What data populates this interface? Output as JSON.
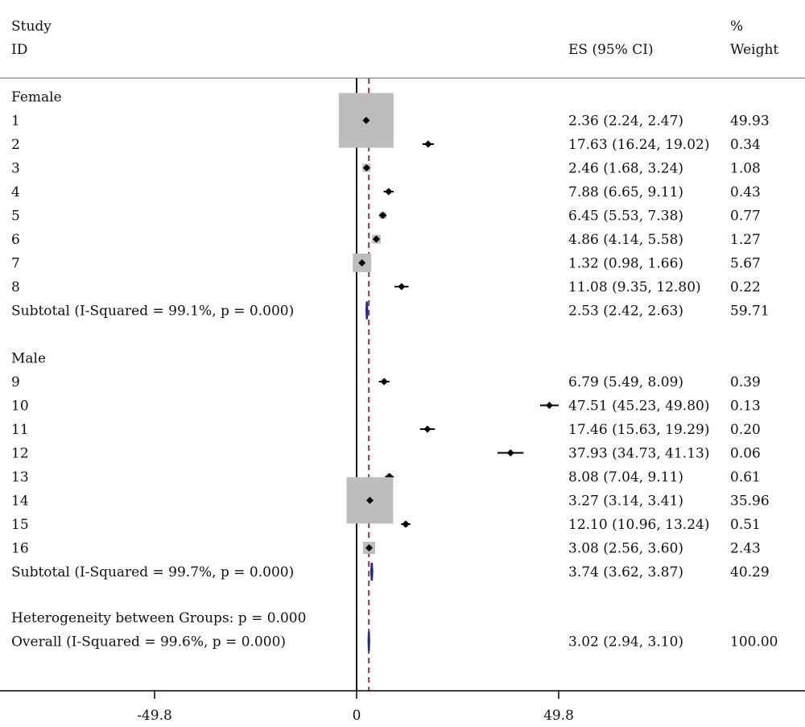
{
  "chart_data": {
    "type": "forest",
    "header": {
      "study_label": "Study",
      "id_label": "ID",
      "es_label": "ES (95% CI)",
      "weight_label_top": "%",
      "weight_label_bottom": "Weight"
    },
    "x_ticks": [
      -49.8,
      0,
      49.8
    ],
    "x_tick_labels": [
      "-49.8",
      "0",
      "49.8"
    ],
    "xlim": [
      -87.5,
      111.5
    ],
    "reference_line": 3.02,
    "groups": [
      {
        "name": "Female",
        "studies": [
          {
            "id": "1",
            "es": 2.36,
            "lo": 2.24,
            "hi": 2.47,
            "ci_text": "2.36 (2.24, 2.47)",
            "weight": 49.93,
            "weight_text": "49.93"
          },
          {
            "id": "2",
            "es": 17.63,
            "lo": 16.24,
            "hi": 19.02,
            "ci_text": "17.63 (16.24, 19.02)",
            "weight": 0.34,
            "weight_text": "0.34"
          },
          {
            "id": "3",
            "es": 2.46,
            "lo": 1.68,
            "hi": 3.24,
            "ci_text": "2.46 (1.68, 3.24)",
            "weight": 1.08,
            "weight_text": "1.08"
          },
          {
            "id": "4",
            "es": 7.88,
            "lo": 6.65,
            "hi": 9.11,
            "ci_text": "7.88 (6.65, 9.11)",
            "weight": 0.43,
            "weight_text": "0.43"
          },
          {
            "id": "5",
            "es": 6.45,
            "lo": 5.53,
            "hi": 7.38,
            "ci_text": "6.45 (5.53, 7.38)",
            "weight": 0.77,
            "weight_text": "0.77"
          },
          {
            "id": "6",
            "es": 4.86,
            "lo": 4.14,
            "hi": 5.58,
            "ci_text": "4.86 (4.14, 5.58)",
            "weight": 1.27,
            "weight_text": "1.27"
          },
          {
            "id": "7",
            "es": 1.32,
            "lo": 0.98,
            "hi": 1.66,
            "ci_text": "1.32 (0.98, 1.66)",
            "weight": 5.67,
            "weight_text": "5.67"
          },
          {
            "id": "8",
            "es": 11.08,
            "lo": 9.35,
            "hi": 12.8,
            "ci_text": "11.08 (9.35, 12.80)",
            "weight": 0.22,
            "weight_text": "0.22"
          }
        ],
        "subtotal": {
          "label": "Subtotal  (I-Squared = 99.1%, p = 0.000)",
          "es": 2.53,
          "lo": 2.42,
          "hi": 2.63,
          "ci_text": "2.53 (2.42, 2.63)",
          "weight_text": "59.71"
        }
      },
      {
        "name": "Male",
        "studies": [
          {
            "id": "9",
            "es": 6.79,
            "lo": 5.49,
            "hi": 8.09,
            "ci_text": "6.79 (5.49, 8.09)",
            "weight": 0.39,
            "weight_text": "0.39"
          },
          {
            "id": "10",
            "es": 47.51,
            "lo": 45.23,
            "hi": 49.8,
            "ci_text": "47.51 (45.23, 49.80)",
            "weight": 0.13,
            "weight_text": "0.13"
          },
          {
            "id": "11",
            "es": 17.46,
            "lo": 15.63,
            "hi": 19.29,
            "ci_text": "17.46 (15.63, 19.29)",
            "weight": 0.2,
            "weight_text": "0.20"
          },
          {
            "id": "12",
            "es": 37.93,
            "lo": 34.73,
            "hi": 41.13,
            "ci_text": "37.93 (34.73, 41.13)",
            "weight": 0.06,
            "weight_text": "0.06"
          },
          {
            "id": "13",
            "es": 8.08,
            "lo": 7.04,
            "hi": 9.11,
            "ci_text": "8.08 (7.04, 9.11)",
            "weight": 0.61,
            "weight_text": "0.61"
          },
          {
            "id": "14",
            "es": 3.27,
            "lo": 3.14,
            "hi": 3.41,
            "ci_text": "3.27 (3.14, 3.41)",
            "weight": 35.96,
            "weight_text": "35.96"
          },
          {
            "id": "15",
            "es": 12.1,
            "lo": 10.96,
            "hi": 13.24,
            "ci_text": "12.10 (10.96, 13.24)",
            "weight": 0.51,
            "weight_text": "0.51"
          },
          {
            "id": "16",
            "es": 3.08,
            "lo": 2.56,
            "hi": 3.6,
            "ci_text": "3.08 (2.56, 3.60)",
            "weight": 2.43,
            "weight_text": "2.43"
          }
        ],
        "subtotal": {
          "label": "Subtotal  (I-Squared = 99.7%, p = 0.000)",
          "es": 3.74,
          "lo": 3.62,
          "hi": 3.87,
          "ci_text": "3.74 (3.62, 3.87)",
          "weight_text": "40.29"
        }
      }
    ],
    "heterogeneity_label": "Heterogeneity between Groups: p = 0.000",
    "overall": {
      "label": "Overall  (I-Squared = 99.6%, p = 0.000)",
      "es": 3.02,
      "lo": 2.94,
      "hi": 3.1,
      "ci_text": "3.02 (2.94, 3.10)",
      "weight_text": "100.00"
    },
    "colors": {
      "box": "#bdbdbd",
      "point": "#000000",
      "diamond": "#1f2a8a",
      "reference_line": "#a0304a",
      "null_line": "#000000",
      "rule": "#9a9a9a"
    }
  }
}
